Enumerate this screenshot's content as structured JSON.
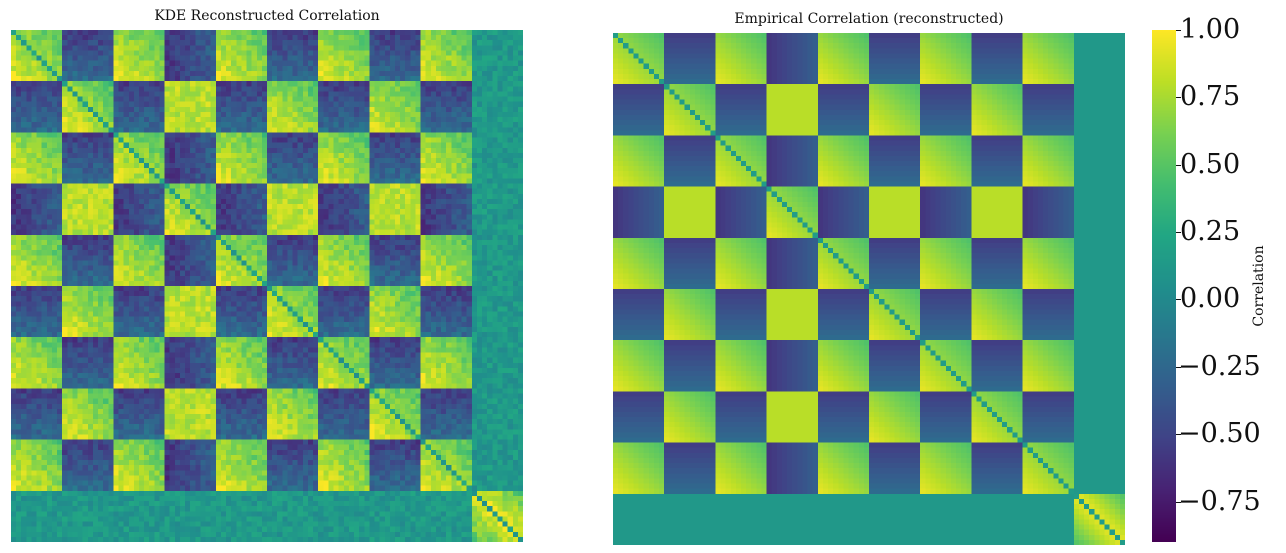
{
  "chart_data": [
    {
      "type": "heatmap",
      "title": "KDE Reconstructed Correlation",
      "variant": "noisy",
      "block_count": 10,
      "cells_per_block": 10,
      "block_classes": [
        "A",
        "B",
        "A",
        "C",
        "A",
        "B",
        "A",
        "B",
        "A",
        "D"
      ],
      "block_class_correlations": {
        "A-A": 0.75,
        "B-B": 0.75,
        "A-B": -0.6,
        "A-C": -0.65,
        "B-C": 0.85,
        "C-C": 0.8,
        "D-D": 0.5,
        "D-other": 0.1
      },
      "colorscale": "viridis",
      "vmin": -0.9,
      "vmax": 1.0
    },
    {
      "type": "heatmap",
      "title": "Empirical Correlation (reconstructed)",
      "variant": "smooth",
      "block_count": 10,
      "cells_per_block": 10,
      "block_classes": [
        "A",
        "B",
        "A",
        "C",
        "A",
        "B",
        "A",
        "B",
        "A",
        "D"
      ],
      "colorscale": "viridis",
      "vmin": -0.9,
      "vmax": 1.0
    }
  ],
  "colorbar": {
    "label": "Correlation",
    "ticks": [
      "1.00",
      "0.75",
      "0.50",
      "0.25",
      "0.00",
      "−0.25",
      "−0.50",
      "−0.75"
    ],
    "tick_values": [
      1.0,
      0.75,
      0.5,
      0.25,
      0.0,
      -0.25,
      -0.5,
      -0.75
    ],
    "vmin": -0.9,
    "vmax": 1.0
  }
}
